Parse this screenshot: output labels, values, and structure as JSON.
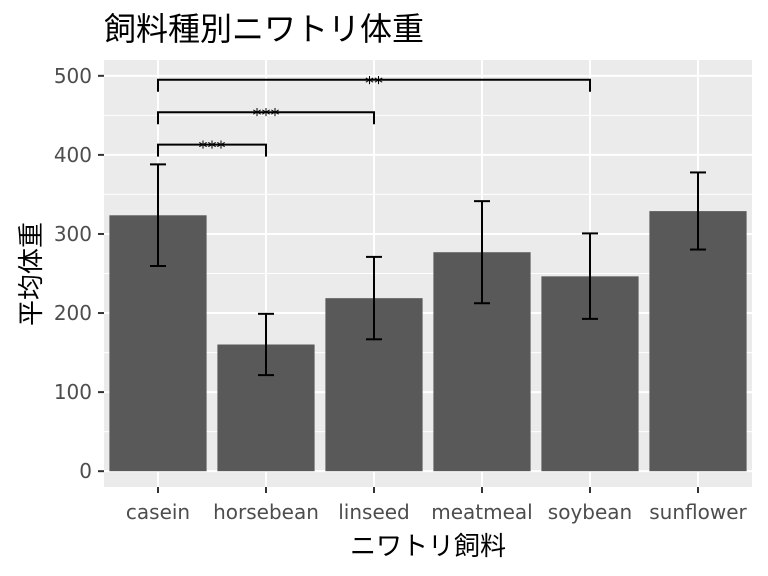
{
  "chart_data": {
    "type": "bar",
    "title": "飼料種別ニワトリ体重",
    "xlabel": "ニワトリ飼料",
    "ylabel": "平均体重",
    "categories": [
      "casein",
      "horsebean",
      "linseed",
      "meatmeal",
      "soybean",
      "sunflower"
    ],
    "values": [
      323.6,
      160.2,
      218.8,
      276.9,
      246.4,
      328.9
    ],
    "error_low": [
      259.5,
      121.5,
      166.8,
      212.4,
      192.6,
      280.3
    ],
    "error_high": [
      388.0,
      199.0,
      271.0,
      341.5,
      300.7,
      377.8
    ],
    "ylim": [
      -20,
      520
    ],
    "yticks": [
      0,
      100,
      200,
      300,
      400,
      500
    ],
    "grid": true,
    "comparisons": [
      {
        "from": "casein",
        "to": "horsebean",
        "y": 413,
        "label": "***"
      },
      {
        "from": "casein",
        "to": "linseed",
        "y": 454,
        "label": "***"
      },
      {
        "from": "casein",
        "to": "soybean",
        "y": 495,
        "label": "**"
      }
    ],
    "colors": {
      "bar": "#595959",
      "panel": "#ebebeb",
      "grid": "#ffffff",
      "tick_text": "#4d4d4d",
      "errorbar": "#000000"
    }
  }
}
